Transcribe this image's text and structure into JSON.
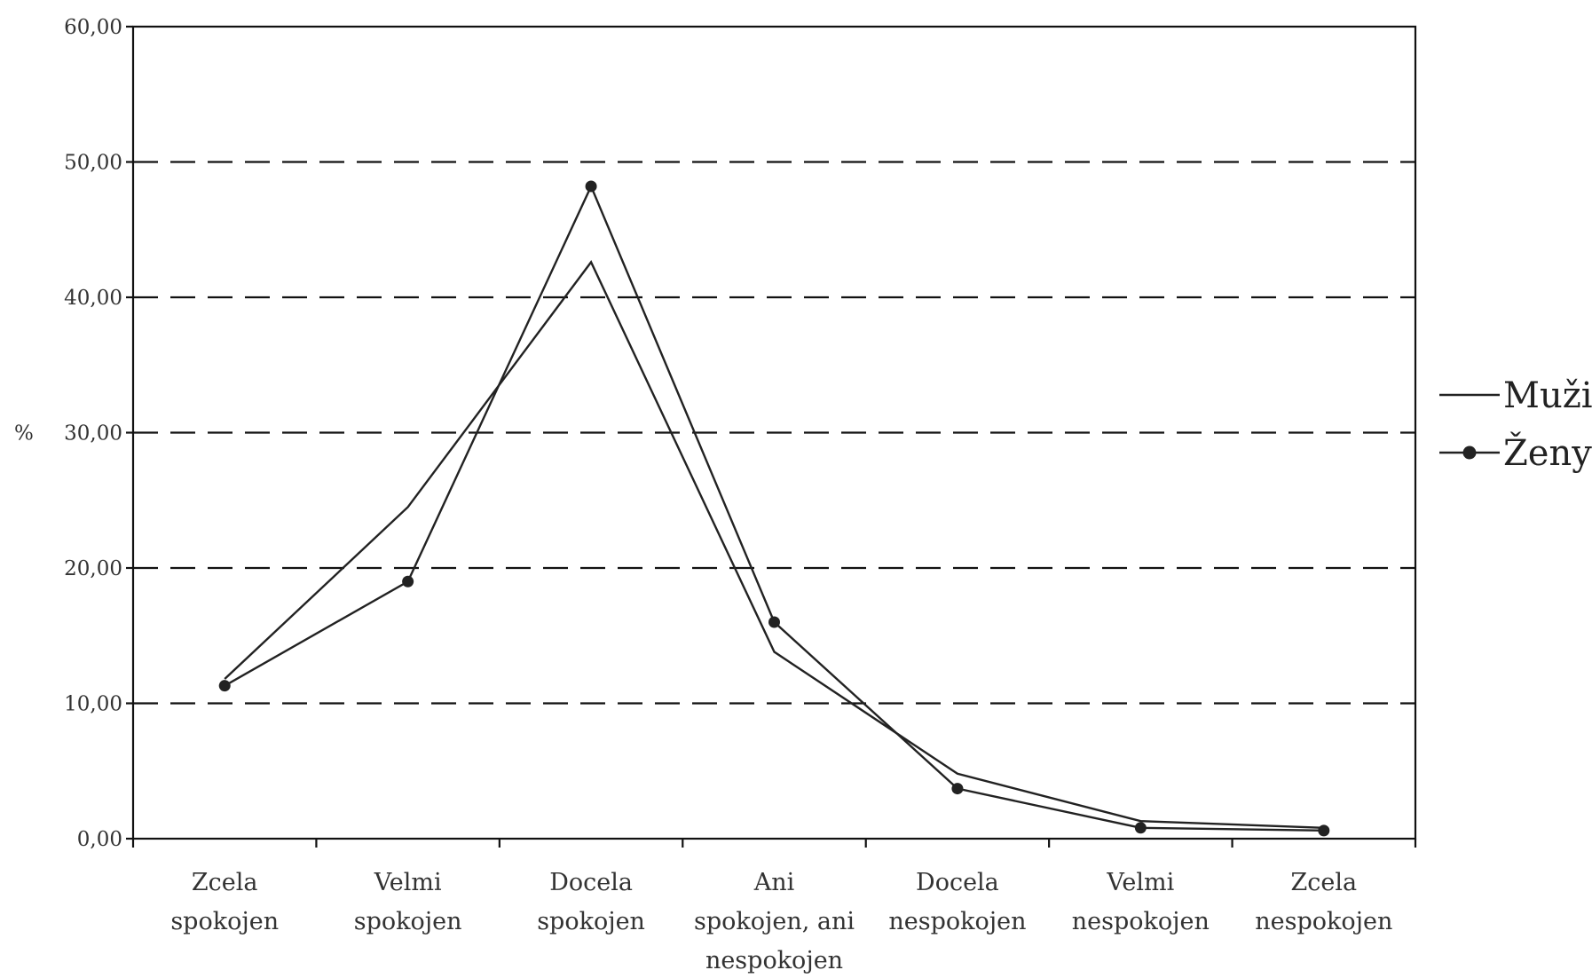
{
  "chart_data": {
    "type": "line",
    "categories": [
      [
        "Zcela",
        "spokojen"
      ],
      [
        "Velmi",
        "spokojen"
      ],
      [
        "Docela",
        "spokojen"
      ],
      [
        "Ani",
        "spokojen, ani",
        "nespokojen"
      ],
      [
        "Docela",
        "nespokojen"
      ],
      [
        "Velmi",
        "nespokojen"
      ],
      [
        "Zcela",
        "nespokojen"
      ]
    ],
    "series": [
      {
        "name": "Muži",
        "values": [
          11.8,
          24.5,
          42.6,
          13.8,
          4.8,
          1.3,
          0.8
        ],
        "marker": "none"
      },
      {
        "name": "Ženy",
        "values": [
          11.3,
          19.0,
          48.2,
          16.0,
          3.7,
          0.8,
          0.6
        ],
        "marker": "circle"
      }
    ],
    "ylabel": "%",
    "ylim": [
      0,
      60
    ],
    "yticks": [
      "0,00",
      "10,00",
      "20,00",
      "30,00",
      "40,00",
      "50,00",
      "60,00"
    ],
    "grid": true,
    "legend_position": "right",
    "colors": {
      "line": "#222222",
      "grid": "#111111"
    }
  }
}
